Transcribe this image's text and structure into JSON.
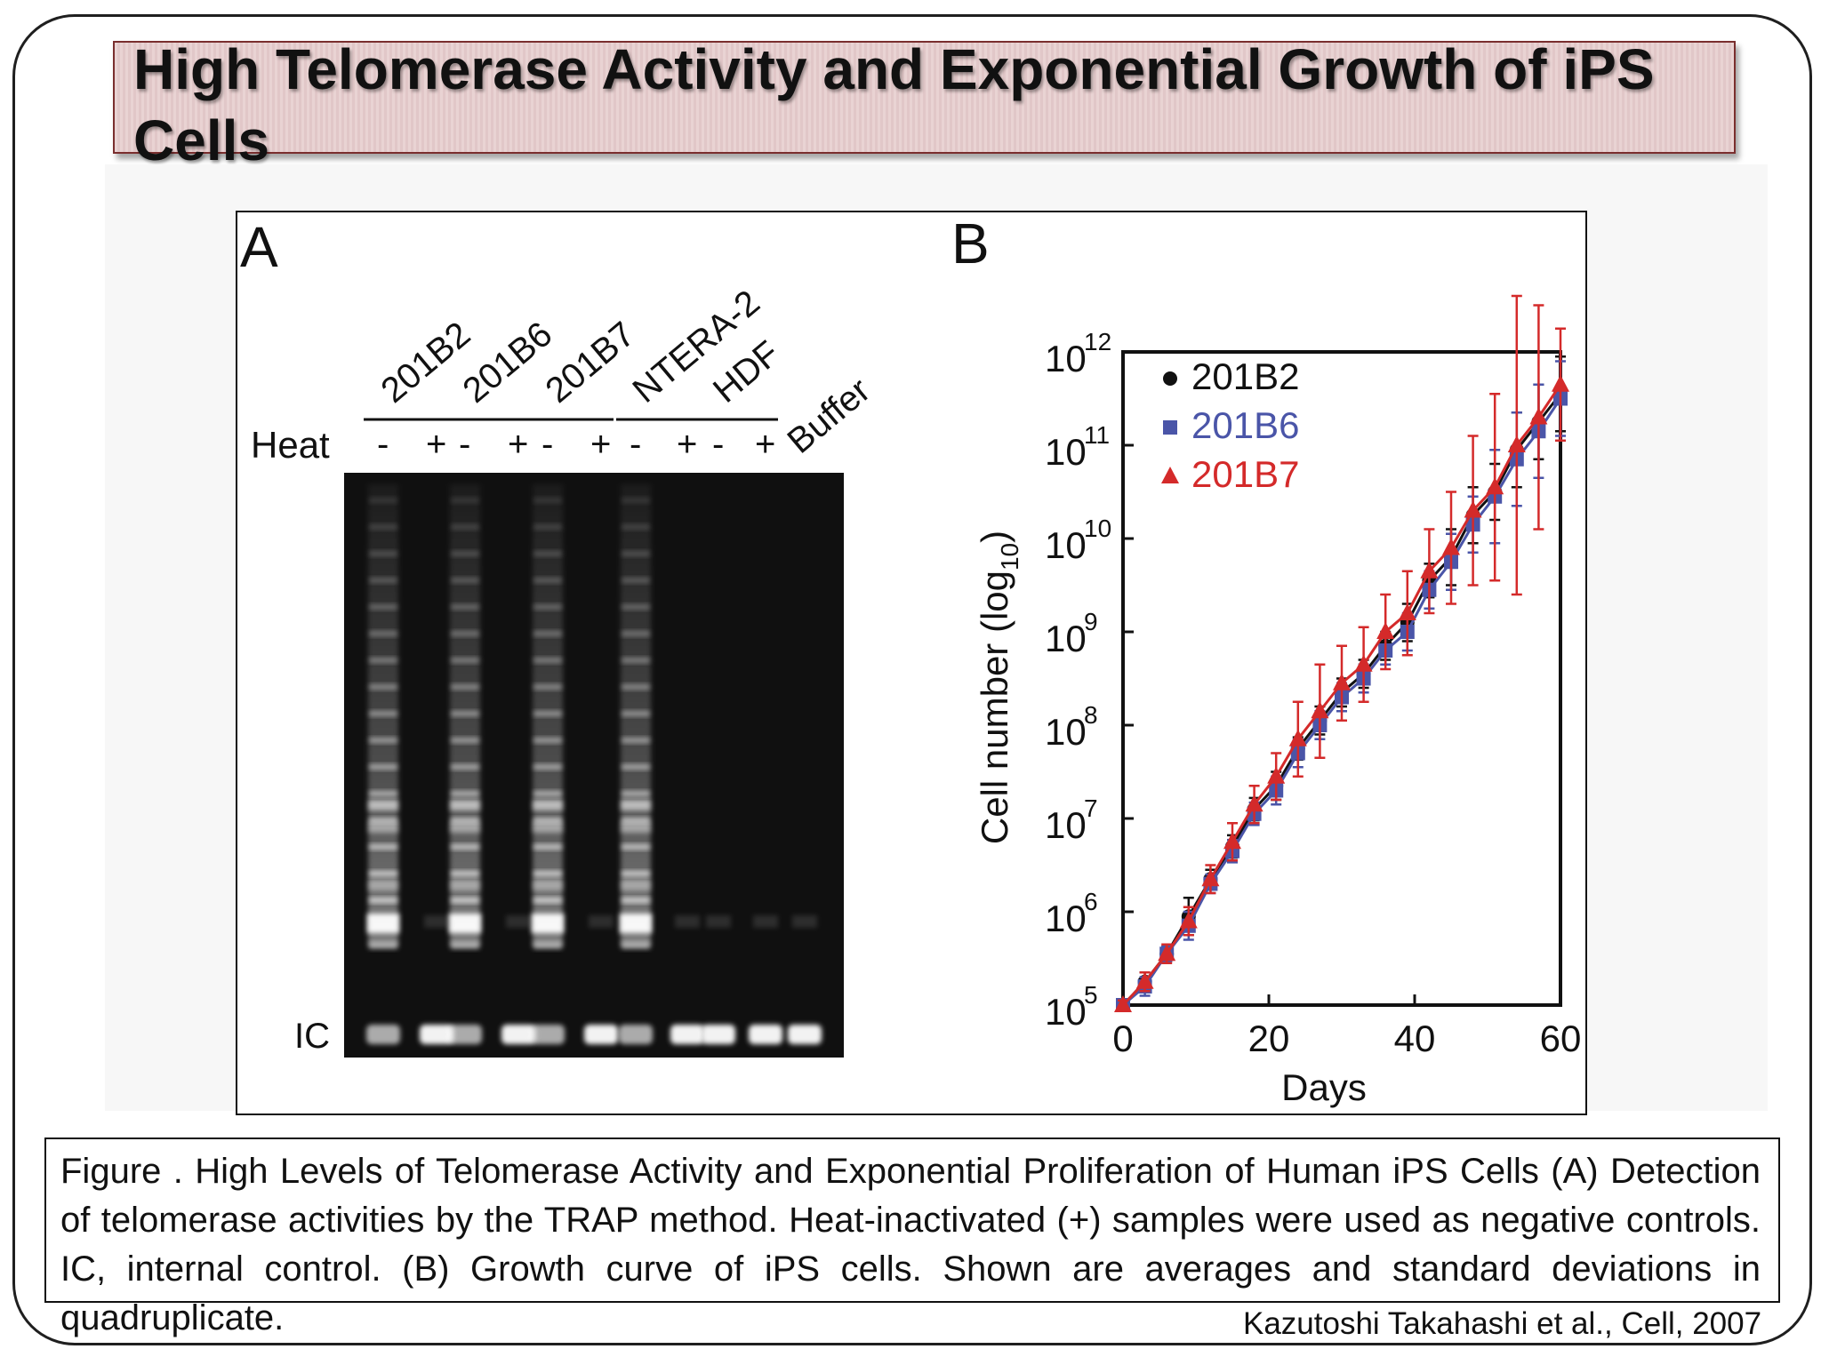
{
  "slide": {
    "title": "High Telomerase Activity and Exponential Growth of iPS Cells",
    "caption": "Figure . High Levels of Telomerase Activity and Exponential Proliferation of Human iPS Cells (A) Detection of telomerase activities by the TRAP method. Heat-inactivated (+) samples were used as negative controls. IC, internal control. (B) Growth curve of iPS cells. Shown are averages and standard deviations in quadruplicate.",
    "citation": "Kazutoshi Takahashi et al., Cell, 2007"
  },
  "panel_a": {
    "label": "A",
    "heat_label": "Heat",
    "ic_label": "IC",
    "groups": [
      "201B2",
      "201B6",
      "201B7",
      "NTERA-2",
      "HDF"
    ],
    "buffer_label": "Buffer",
    "minus": "-",
    "plus": "+"
  },
  "chart_data": {
    "type": "line",
    "panel_label": "B",
    "xlabel": "Days",
    "ylabel": "Cell number (log10)",
    "ylabel_main": "Cell number (log",
    "ylabel_sub": "10",
    "ylabel_close": ")",
    "log_scale_y": true,
    "xlim": [
      0,
      60
    ],
    "ylim_log10": [
      5,
      12
    ],
    "x_ticks": [
      "0",
      "20",
      "40",
      "60"
    ],
    "y_tick_base": "10",
    "y_tick_exponents": [
      "5",
      "6",
      "7",
      "8",
      "9",
      "10",
      "11",
      "12"
    ],
    "legend_position": "top-left",
    "series": [
      {
        "name": "201B2",
        "color": "#111111",
        "marker": "circle",
        "x": [
          0,
          3,
          6,
          9,
          12,
          15,
          18,
          21,
          24,
          27,
          30,
          33,
          36,
          39,
          42,
          45,
          48,
          51,
          54,
          57,
          60
        ],
        "log10_y": [
          5.0,
          5.25,
          5.55,
          5.95,
          6.35,
          6.7,
          7.1,
          7.35,
          7.75,
          8.05,
          8.35,
          8.55,
          8.85,
          9.1,
          9.55,
          9.8,
          10.25,
          10.5,
          10.95,
          11.25,
          11.55
        ],
        "log10_err": [
          0.05,
          0.1,
          0.08,
          0.2,
          0.1,
          0.12,
          0.12,
          0.15,
          0.12,
          0.15,
          0.15,
          0.15,
          0.15,
          0.2,
          0.18,
          0.3,
          0.3,
          0.3,
          0.4,
          0.4,
          0.4
        ]
      },
      {
        "name": "201B6",
        "color": "#4a55a8",
        "marker": "square",
        "x": [
          0,
          3,
          6,
          9,
          12,
          15,
          18,
          21,
          24,
          27,
          30,
          33,
          36,
          39,
          42,
          45,
          48,
          51,
          54,
          57,
          60
        ],
        "log10_y": [
          5.0,
          5.2,
          5.55,
          5.85,
          6.3,
          6.65,
          7.05,
          7.3,
          7.7,
          8.0,
          8.3,
          8.5,
          8.8,
          9.0,
          9.45,
          9.75,
          10.15,
          10.45,
          10.85,
          11.15,
          11.5
        ],
        "log10_err": [
          0.05,
          0.1,
          0.08,
          0.15,
          0.1,
          0.12,
          0.12,
          0.15,
          0.15,
          0.15,
          0.15,
          0.15,
          0.15,
          0.2,
          0.2,
          0.3,
          0.3,
          0.5,
          0.5,
          0.5,
          0.4
        ]
      },
      {
        "name": "201B7",
        "color": "#d42a2a",
        "marker": "triangle",
        "x": [
          0,
          3,
          6,
          9,
          12,
          15,
          18,
          21,
          24,
          27,
          30,
          33,
          36,
          39,
          42,
          45,
          48,
          51,
          54,
          57,
          60
        ],
        "log10_y": [
          5.0,
          5.25,
          5.55,
          5.9,
          6.35,
          6.75,
          7.15,
          7.45,
          7.85,
          8.15,
          8.45,
          8.65,
          9.0,
          9.2,
          9.65,
          9.9,
          10.3,
          10.55,
          11.0,
          11.3,
          11.65
        ],
        "log10_err": [
          0.05,
          0.1,
          0.1,
          0.15,
          0.15,
          0.2,
          0.2,
          0.25,
          0.4,
          0.5,
          0.4,
          0.4,
          0.4,
          0.45,
          0.45,
          0.6,
          0.8,
          1.0,
          1.6,
          1.2,
          0.6
        ]
      }
    ]
  }
}
